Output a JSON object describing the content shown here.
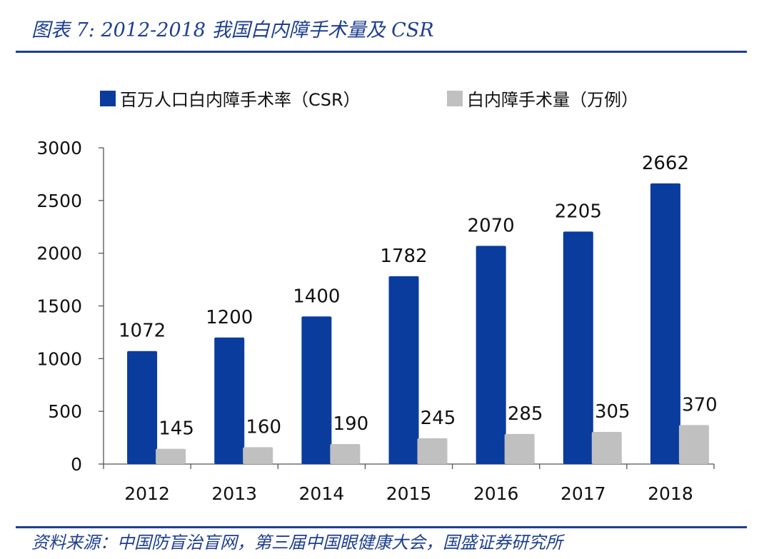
{
  "header": {
    "title": "图表 7: 2012-2018 我国白内障手术量及 CSR"
  },
  "footer": {
    "source": "资料来源：中国防盲治盲网，第三届中国眼健康大会，国盛证券研究所"
  },
  "colors": {
    "accent": "#1e3f8f",
    "series_csr": "#0a3c9e",
    "series_volume": "#c0c0c0"
  },
  "chart_data": {
    "type": "bar",
    "categories": [
      "2012",
      "2013",
      "2014",
      "2015",
      "2016",
      "2017",
      "2018"
    ],
    "series": [
      {
        "name": "百万人口白内障手术率（CSR）",
        "values": [
          1072,
          1200,
          1400,
          1782,
          2070,
          2205,
          2662
        ]
      },
      {
        "name": "白内障手术量（万例）",
        "values": [
          145,
          160,
          190,
          245,
          285,
          305,
          370
        ]
      }
    ],
    "title": "",
    "xlabel": "",
    "ylabel": "",
    "ylim": [
      0,
      3000
    ],
    "yticks": [
      0,
      500,
      1000,
      1500,
      2000,
      2500,
      3000
    ],
    "legend_position": "top",
    "grid": false
  }
}
